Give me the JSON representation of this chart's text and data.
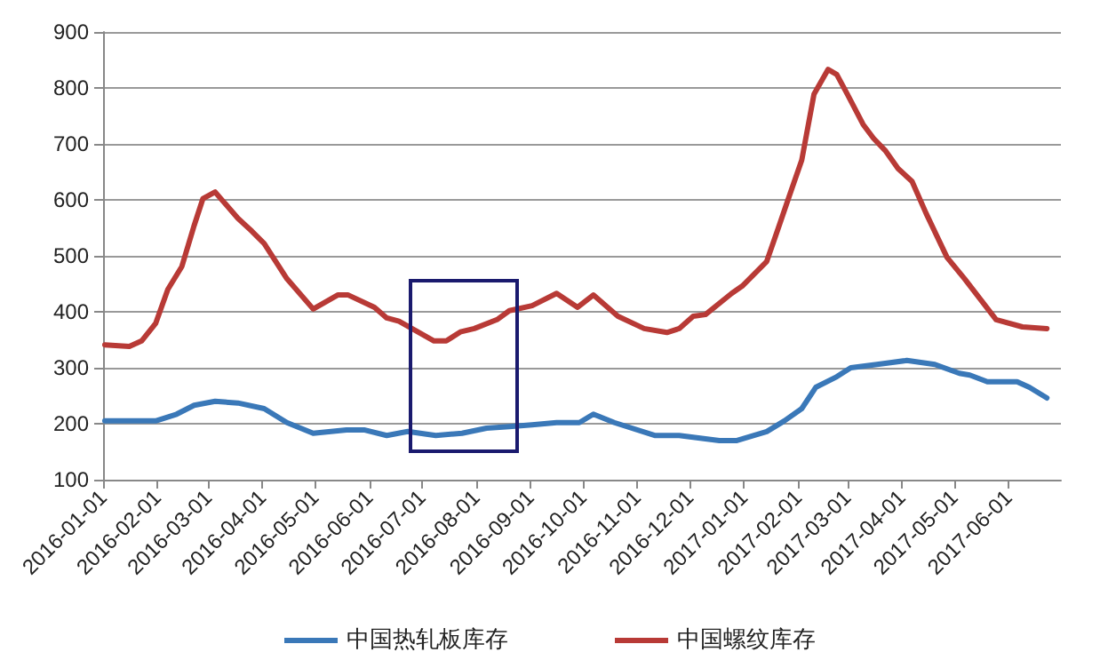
{
  "chart_data": {
    "type": "line",
    "xlim": [
      "2016-01-01",
      "2017-07-01"
    ],
    "xticks": [
      "2016-01-01",
      "2016-02-01",
      "2016-03-01",
      "2016-04-01",
      "2016-05-01",
      "2016-06-01",
      "2016-07-01",
      "2016-08-01",
      "2016-09-01",
      "2016-10-01",
      "2016-11-01",
      "2016-12-01",
      "2017-01-01",
      "2017-02-01",
      "2017-03-01",
      "2017-04-01",
      "2017-05-01",
      "2017-06-01"
    ],
    "ylim": [
      100,
      900
    ],
    "yticks": [
      100,
      200,
      300,
      400,
      500,
      600,
      700,
      800,
      900
    ],
    "grid": "y",
    "legend": "bottom",
    "marker": "none",
    "line_style": "solid",
    "series": [
      {
        "name": "中国热轧板库存",
        "color": "#3a78b8",
        "x": [
          "2016-01-02",
          "2016-01-16",
          "2016-01-31",
          "2016-02-12",
          "2016-02-22",
          "2016-03-05",
          "2016-03-18",
          "2016-04-02",
          "2016-04-15",
          "2016-04-30",
          "2016-05-19",
          "2016-05-29",
          "2016-06-11",
          "2016-06-23",
          "2016-07-09",
          "2016-07-24",
          "2016-08-07",
          "2016-08-20",
          "2016-09-02",
          "2016-09-16",
          "2016-09-29",
          "2016-10-07",
          "2016-10-19",
          "2016-11-11",
          "2016-11-25",
          "2016-12-18",
          "2016-12-28",
          "2017-01-14",
          "2017-01-24",
          "2017-02-03",
          "2017-02-11",
          "2017-02-23",
          "2017-03-03",
          "2017-03-18",
          "2017-04-04",
          "2017-04-20",
          "2017-05-04",
          "2017-05-10",
          "2017-05-20",
          "2017-06-06",
          "2017-06-13",
          "2017-06-23"
        ],
        "values": [
          205,
          205,
          205,
          217,
          233,
          240,
          237,
          227,
          202,
          183,
          189,
          189,
          179,
          186,
          179,
          183,
          192,
          195,
          198,
          202,
          202,
          217,
          202,
          179,
          179,
          170,
          170,
          186,
          205,
          227,
          265,
          284,
          300,
          306,
          313,
          306,
          290,
          287,
          275,
          275,
          265,
          246
        ]
      },
      {
        "name": "中国螺纹库存",
        "color": "#b83a36",
        "x": [
          "2016-01-02",
          "2016-01-16",
          "2016-01-23",
          "2016-01-31",
          "2016-02-07",
          "2016-02-15",
          "2016-02-22",
          "2016-02-27",
          "2016-03-05",
          "2016-03-18",
          "2016-03-26",
          "2016-04-02",
          "2016-04-15",
          "2016-04-30",
          "2016-05-14",
          "2016-05-20",
          "2016-06-04",
          "2016-06-11",
          "2016-06-18",
          "2016-07-08",
          "2016-07-15",
          "2016-07-23",
          "2016-07-31",
          "2016-08-13",
          "2016-08-20",
          "2016-09-02",
          "2016-09-16",
          "2016-09-28",
          "2016-10-07",
          "2016-10-21",
          "2016-11-05",
          "2016-11-18",
          "2016-11-25",
          "2016-12-03",
          "2016-12-10",
          "2016-12-25",
          "2016-12-31",
          "2017-01-14",
          "2017-01-20",
          "2017-01-27",
          "2017-02-03",
          "2017-02-10",
          "2017-02-18",
          "2017-02-23",
          "2017-03-01",
          "2017-03-10",
          "2017-03-16",
          "2017-03-23",
          "2017-03-30",
          "2017-04-07",
          "2017-04-15",
          "2017-04-27",
          "2017-05-07",
          "2017-05-25",
          "2017-06-09",
          "2017-06-23"
        ],
        "values": [
          341,
          338,
          348,
          379,
          440,
          481,
          554,
          602,
          614,
          567,
          544,
          522,
          459,
          405,
          430,
          430,
          408,
          389,
          383,
          348,
          348,
          364,
          370,
          386,
          402,
          411,
          433,
          408,
          430,
          392,
          370,
          363,
          370,
          392,
          395,
          433,
          446,
          490,
          544,
          608,
          671,
          789,
          833,
          824,
          789,
          735,
          710,
          687,
          656,
          633,
          576,
          497,
          459,
          386,
          373,
          370
        ]
      }
    ]
  }
}
